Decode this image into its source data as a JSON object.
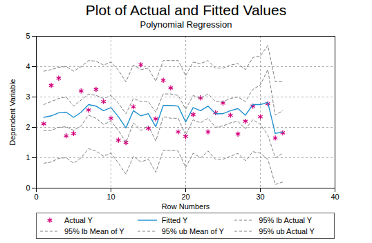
{
  "chart_data": {
    "type": "line",
    "title": "Plot of Actual and Fitted Values",
    "subtitle": "Polynomial Regression",
    "x_label": "Row Numbers",
    "y_label": "Dependent Variable",
    "x": [
      1,
      2,
      3,
      4,
      5,
      6,
      7,
      8,
      9,
      10,
      11,
      12,
      13,
      14,
      15,
      16,
      17,
      18,
      19,
      20,
      21,
      22,
      23,
      24,
      25,
      26,
      27,
      28,
      29,
      30,
      31,
      32,
      33
    ],
    "xlim": [
      0,
      40
    ],
    "xticks": [
      0,
      10,
      20,
      30,
      40
    ],
    "ylim": [
      0,
      5
    ],
    "yticks": [
      0,
      1,
      2,
      3,
      4,
      5
    ],
    "grid": true,
    "legend": "bottom",
    "series": [
      {
        "name": "Actual Y",
        "type": "scatter",
        "marker": "asterisk",
        "color": "#d1007a",
        "values": [
          2.12,
          3.38,
          3.62,
          1.72,
          1.8,
          3.2,
          2.57,
          3.25,
          2.85,
          2.3,
          1.58,
          1.5,
          2.68,
          4.06,
          1.97,
          2.28,
          3.55,
          3.3,
          1.85,
          1.7,
          2.42,
          2.97,
          1.85,
          2.48,
          2.8,
          2.4,
          1.78,
          2.2,
          2.7,
          2.35,
          2.78,
          1.65,
          1.82
        ]
      },
      {
        "name": "Fitted Y",
        "type": "line",
        "line_style": "solid",
        "color": "#1e90d0",
        "values": [
          2.33,
          2.38,
          2.48,
          2.5,
          2.33,
          2.5,
          2.75,
          2.7,
          2.55,
          2.65,
          2.35,
          1.98,
          2.55,
          2.38,
          2.45,
          2.02,
          2.72,
          2.72,
          2.7,
          2.18,
          2.65,
          2.55,
          2.7,
          2.45,
          2.45,
          2.55,
          2.62,
          2.4,
          2.75,
          2.75,
          2.82,
          1.8,
          1.85
        ]
      },
      {
        "name": "95% lb Actual Y",
        "type": "line",
        "line_style": "dashed",
        "color": "#808080",
        "values": [
          0.82,
          0.86,
          0.98,
          1.0,
          0.82,
          1.0,
          1.3,
          1.22,
          1.05,
          1.15,
          0.82,
          0.46,
          1.05,
          0.86,
          0.95,
          0.52,
          1.25,
          1.25,
          1.22,
          0.68,
          1.15,
          1.0,
          1.22,
          0.95,
          0.95,
          1.05,
          1.14,
          0.9,
          1.2,
          1.15,
          0.95,
          0.12,
          0.2
        ]
      },
      {
        "name": "95% lb Mean of Y",
        "type": "line",
        "line_style": "dashed",
        "color": "#808080",
        "values": [
          1.9,
          1.9,
          2.0,
          2.02,
          1.9,
          2.05,
          2.4,
          2.3,
          2.1,
          2.2,
          1.9,
          1.5,
          2.15,
          1.9,
          2.05,
          1.55,
          2.35,
          2.3,
          2.3,
          1.75,
          2.25,
          2.15,
          2.3,
          2.0,
          2.05,
          2.15,
          2.2,
          1.95,
          2.25,
          2.1,
          1.75,
          1.0,
          1.15
        ]
      },
      {
        "name": "95% ub Mean of Y",
        "type": "line",
        "line_style": "dashed",
        "color": "#808080",
        "values": [
          2.75,
          2.85,
          2.95,
          3.0,
          2.7,
          2.9,
          3.1,
          3.05,
          2.95,
          3.05,
          2.8,
          2.45,
          2.95,
          2.85,
          2.85,
          2.5,
          3.1,
          3.1,
          3.05,
          2.6,
          3.05,
          2.95,
          3.1,
          2.85,
          2.85,
          2.95,
          3.0,
          2.85,
          3.25,
          3.4,
          3.9,
          2.4,
          2.55
        ]
      },
      {
        "name": "95% ub Actual Y",
        "type": "line",
        "line_style": "dashed",
        "color": "#808080",
        "values": [
          3.85,
          3.9,
          3.98,
          4.0,
          3.85,
          4.0,
          4.2,
          4.18,
          4.05,
          4.15,
          3.88,
          3.5,
          4.05,
          3.9,
          3.95,
          3.52,
          4.2,
          4.2,
          4.2,
          3.7,
          4.15,
          4.1,
          4.2,
          3.95,
          3.95,
          4.05,
          4.1,
          3.9,
          4.3,
          4.35,
          4.7,
          3.5,
          3.5
        ]
      }
    ]
  }
}
